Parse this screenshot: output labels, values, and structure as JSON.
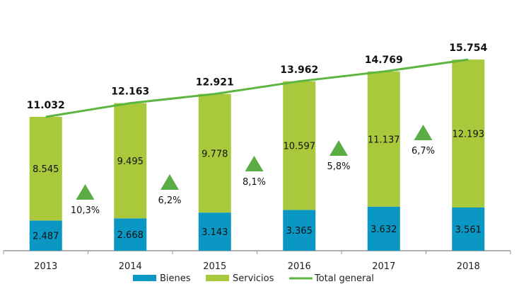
{
  "chart_data": {
    "type": "bar",
    "stacked": true,
    "categories": [
      "2013",
      "2014",
      "2015",
      "2016",
      "2017",
      "2018"
    ],
    "series": [
      {
        "name": "Bienes",
        "type": "bar",
        "color": "#0a97c4",
        "values": [
          2487,
          2668,
          3143,
          3365,
          3632,
          3561
        ],
        "labels": [
          "2.487",
          "2.668",
          "3.143",
          "3.365",
          "3.632",
          "3.561"
        ]
      },
      {
        "name": "Servicios",
        "type": "bar",
        "color": "#a9c83c",
        "values": [
          8545,
          9495,
          9778,
          10597,
          11137,
          12193
        ],
        "labels": [
          "8.545",
          "9.495",
          "9.778",
          "10.597",
          "11.137",
          "12.193"
        ]
      },
      {
        "name": "Total general",
        "type": "line",
        "color": "#5db640",
        "values": [
          11032,
          12163,
          12921,
          13962,
          14769,
          15754
        ],
        "labels": [
          "11.032",
          "12.163",
          "12.921",
          "13.962",
          "14.769",
          "15.754"
        ]
      }
    ],
    "growth": {
      "icon": "triangle-up-icon",
      "color": "#5aac44",
      "values": [
        10.3,
        6.2,
        8.1,
        5.8,
        6.7
      ],
      "labels": [
        "10,3%",
        "6,2%",
        "8,1%",
        "5,8%",
        "6,7%"
      ]
    },
    "legend_position": "bottom",
    "grid": false
  }
}
